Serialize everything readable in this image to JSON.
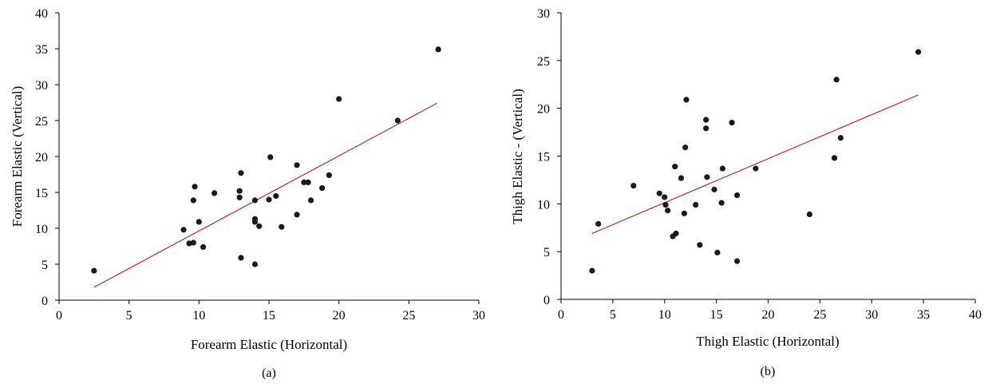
{
  "chart_data": [
    {
      "type": "scatter",
      "panel_label": "(a)",
      "xlabel": "Forearm Elastic (Horizontal)",
      "ylabel": "Forearm Elastic (Vertical)",
      "xlim": [
        0,
        30
      ],
      "ylim": [
        0,
        40
      ],
      "xticks": [
        0,
        5,
        10,
        15,
        20,
        25,
        30
      ],
      "yticks": [
        0,
        5,
        10,
        15,
        20,
        25,
        30,
        35,
        40
      ],
      "grid": false,
      "point_color": "#1a1a1a",
      "trendline": {
        "x": [
          2.5,
          27.0
        ],
        "y": [
          1.8,
          27.4
        ],
        "color": "#c0272d"
      },
      "points": [
        {
          "x": 2.5,
          "y": 4.1
        },
        {
          "x": 8.9,
          "y": 9.8
        },
        {
          "x": 9.3,
          "y": 7.9
        },
        {
          "x": 9.6,
          "y": 8.0
        },
        {
          "x": 9.6,
          "y": 13.9
        },
        {
          "x": 9.7,
          "y": 15.8
        },
        {
          "x": 10.0,
          "y": 10.9
        },
        {
          "x": 10.3,
          "y": 7.4
        },
        {
          "x": 11.1,
          "y": 14.9
        },
        {
          "x": 12.9,
          "y": 15.2
        },
        {
          "x": 12.9,
          "y": 14.3
        },
        {
          "x": 13.0,
          "y": 17.7
        },
        {
          "x": 13.0,
          "y": 5.9
        },
        {
          "x": 14.0,
          "y": 13.9
        },
        {
          "x": 14.0,
          "y": 11.3
        },
        {
          "x": 14.0,
          "y": 10.9
        },
        {
          "x": 14.0,
          "y": 5.0
        },
        {
          "x": 14.3,
          "y": 10.3
        },
        {
          "x": 15.0,
          "y": 14.0
        },
        {
          "x": 15.1,
          "y": 19.9
        },
        {
          "x": 15.5,
          "y": 14.5
        },
        {
          "x": 15.9,
          "y": 10.2
        },
        {
          "x": 17.0,
          "y": 18.8
        },
        {
          "x": 17.0,
          "y": 11.9
        },
        {
          "x": 17.5,
          "y": 16.4
        },
        {
          "x": 17.8,
          "y": 16.4
        },
        {
          "x": 18.0,
          "y": 13.9
        },
        {
          "x": 18.8,
          "y": 15.6
        },
        {
          "x": 19.3,
          "y": 17.4
        },
        {
          "x": 20.0,
          "y": 28.0
        },
        {
          "x": 24.2,
          "y": 25.0
        },
        {
          "x": 27.1,
          "y": 34.9
        }
      ]
    },
    {
      "type": "scatter",
      "panel_label": "(b)",
      "xlabel": "Thigh Elastic (Horizontal)",
      "ylabel": "Thigh Elastic - (Vertical)",
      "xlim": [
        0,
        40
      ],
      "ylim": [
        0,
        30
      ],
      "xticks": [
        0,
        5,
        10,
        15,
        20,
        25,
        30,
        35,
        40
      ],
      "yticks": [
        0,
        5,
        10,
        15,
        20,
        25,
        30
      ],
      "grid": false,
      "point_color": "#1a1a1a",
      "trendline": {
        "x": [
          3.0,
          34.5
        ],
        "y": [
          6.9,
          21.4
        ],
        "color": "#c0272d"
      },
      "points": [
        {
          "x": 3.0,
          "y": 3.0
        },
        {
          "x": 3.6,
          "y": 7.9
        },
        {
          "x": 7.0,
          "y": 11.9
        },
        {
          "x": 9.5,
          "y": 11.1
        },
        {
          "x": 10.0,
          "y": 10.7
        },
        {
          "x": 10.1,
          "y": 9.9
        },
        {
          "x": 10.3,
          "y": 9.3
        },
        {
          "x": 10.8,
          "y": 6.6
        },
        {
          "x": 11.0,
          "y": 13.9
        },
        {
          "x": 11.1,
          "y": 6.9
        },
        {
          "x": 11.6,
          "y": 12.7
        },
        {
          "x": 11.9,
          "y": 9.0
        },
        {
          "x": 12.0,
          "y": 15.9
        },
        {
          "x": 12.1,
          "y": 20.9
        },
        {
          "x": 13.0,
          "y": 9.9
        },
        {
          "x": 13.4,
          "y": 5.7
        },
        {
          "x": 14.0,
          "y": 18.8
        },
        {
          "x": 14.0,
          "y": 17.9
        },
        {
          "x": 14.1,
          "y": 12.8
        },
        {
          "x": 14.8,
          "y": 11.5
        },
        {
          "x": 15.1,
          "y": 4.9
        },
        {
          "x": 15.5,
          "y": 10.1
        },
        {
          "x": 15.6,
          "y": 13.7
        },
        {
          "x": 16.5,
          "y": 18.5
        },
        {
          "x": 17.0,
          "y": 10.9
        },
        {
          "x": 17.0,
          "y": 4.0
        },
        {
          "x": 18.8,
          "y": 13.7
        },
        {
          "x": 24.0,
          "y": 8.9
        },
        {
          "x": 26.4,
          "y": 14.8
        },
        {
          "x": 26.6,
          "y": 23.0
        },
        {
          "x": 27.0,
          "y": 16.9
        },
        {
          "x": 34.5,
          "y": 25.9
        }
      ]
    }
  ]
}
